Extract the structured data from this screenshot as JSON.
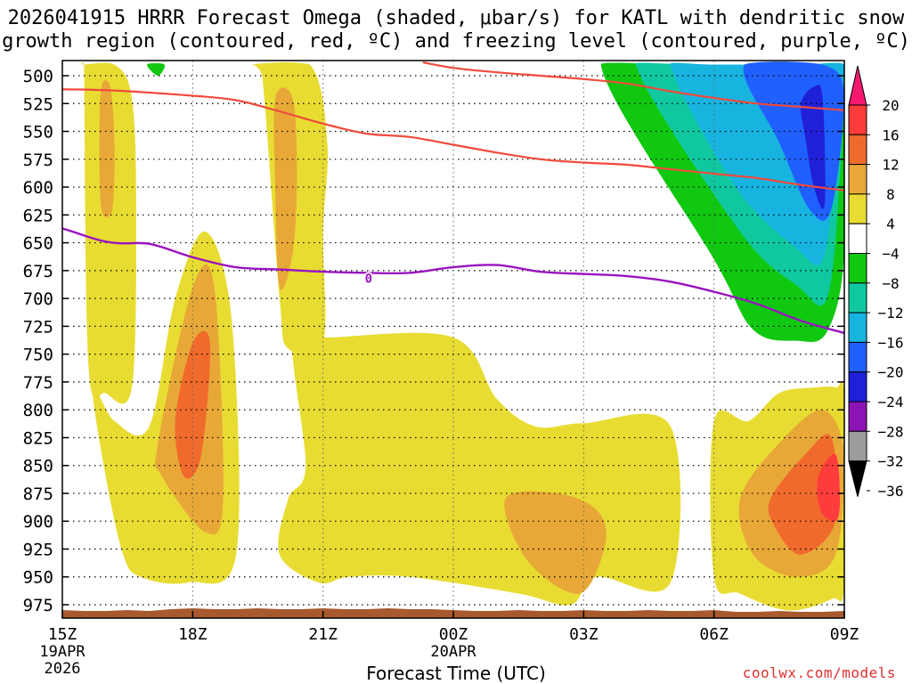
{
  "chart_data": {
    "type": "heatmap",
    "title_line1": "2026041915 HRRR Forecast Omega (shaded, μbar/s) for KATL with dendritic snow",
    "title_line2": "growth region (contoured, red, ºC) and freezing level (contoured, purple, ºC)",
    "xlabel": "Forecast Time (UTC)",
    "x_ticks": [
      {
        "label": "15Z",
        "sub1": "19APR",
        "sub2": "2026",
        "hours": 0
      },
      {
        "label": "18Z",
        "sub1": "",
        "sub2": "",
        "hours": 3
      },
      {
        "label": "21Z",
        "sub1": "",
        "sub2": "",
        "hours": 6
      },
      {
        "label": "00Z",
        "sub1": "20APR",
        "sub2": "",
        "hours": 9
      },
      {
        "label": "03Z",
        "sub1": "",
        "sub2": "",
        "hours": 12
      },
      {
        "label": "06Z",
        "sub1": "",
        "sub2": "",
        "hours": 15
      },
      {
        "label": "09Z",
        "sub1": "",
        "sub2": "",
        "hours": 18
      }
    ],
    "x_range_hours": [
      0,
      18
    ],
    "y_ticks": [
      500,
      525,
      550,
      575,
      600,
      625,
      650,
      675,
      700,
      725,
      750,
      775,
      800,
      825,
      850,
      875,
      900,
      925,
      950,
      975
    ],
    "y_range_hPa": [
      488,
      990
    ],
    "colorbar_ticks": [
      "20",
      "16",
      "12",
      "8",
      "4",
      "−4",
      "−8",
      "−12",
      "−16",
      "−20",
      "−24",
      "−28",
      "−32",
      "−36"
    ],
    "colorbar_colors": [
      "#f5186e",
      "#ff3c3c",
      "#f06a2c",
      "#e8a838",
      "#e8dc32",
      "#ffffff",
      "#10c810",
      "#10c8a0",
      "#18b4e0",
      "#2060ff",
      "#2020d8",
      "#8c14b4",
      "#9c9c9c",
      "#000000"
    ],
    "freezing_level_label": "0",
    "freezing_level": {
      "hours": [
        -1,
        1,
        2,
        3,
        4,
        5,
        6,
        7,
        8,
        9,
        10,
        11,
        12,
        13,
        14,
        15,
        16,
        17,
        18
      ],
      "hPa": [
        630,
        649,
        651,
        663,
        672,
        674,
        676,
        677,
        677,
        672,
        670,
        676,
        678,
        680,
        685,
        694,
        705,
        720,
        731
      ]
    },
    "dendritic_contours": [
      {
        "hours": [
          -1,
          1,
          3,
          4,
          5,
          6,
          7,
          8,
          9,
          10,
          11,
          12,
          13,
          14,
          15,
          16,
          17,
          18
        ],
        "hPa": [
          512,
          513,
          518,
          522,
          532,
          543,
          552,
          555,
          562,
          569,
          575,
          578,
          580,
          584,
          588,
          592,
          598,
          603
        ]
      },
      {
        "hours": [
          8.3,
          9,
          10,
          11,
          12,
          13,
          14,
          15,
          16,
          17,
          18
        ],
        "hPa": [
          488,
          493,
          497,
          500,
          503,
          507,
          514,
          520,
          525,
          528,
          531
        ]
      }
    ],
    "omega_regions": [
      {
        "name": "column-16z",
        "value": 4,
        "color": "#e8dc32",
        "hours": [
          0.5,
          1.2,
          1.6,
          1.7,
          1.6,
          1.0,
          0.6,
          0.5
        ],
        "hPa": [
          490,
          490,
          520,
          620,
          780,
          785,
          760,
          490
        ]
      },
      {
        "name": "column-16z-core",
        "value": 8,
        "color": "#e8a838",
        "hours": [
          0.9,
          1.1,
          1.2,
          1.15,
          0.9,
          0.85
        ],
        "hPa": [
          510,
          510,
          560,
          620,
          620,
          560
        ]
      },
      {
        "name": "low-left",
        "value": 4,
        "color": "#e8dc32",
        "hours": [
          0.7,
          1.2,
          2.0,
          2.6,
          3.3,
          3.9,
          4.0,
          2.9,
          1.8,
          1.4,
          1.0
        ],
        "hPa": [
          780,
          810,
          815,
          700,
          640,
          720,
          930,
          955,
          950,
          930,
          860
        ]
      },
      {
        "name": "plume-18z-8",
        "value": 8,
        "color": "#e8a838",
        "hours": [
          2.2,
          3.0,
          3.5,
          3.7,
          3.3,
          2.3
        ],
        "hPa": [
          830,
          690,
          690,
          880,
          910,
          860
        ]
      },
      {
        "name": "plume-18z-12",
        "value": 12,
        "color": "#f06a2c",
        "hours": [
          2.6,
          3.0,
          3.4,
          3.2,
          2.8
        ],
        "hPa": [
          810,
          740,
          740,
          840,
          860
        ]
      },
      {
        "name": "column-20z",
        "value": 4,
        "color": "#e8dc32",
        "hours": [
          4.4,
          5.7,
          6.1,
          6.0,
          6.0,
          5.2,
          5.0,
          4.6
        ],
        "hPa": [
          490,
          490,
          560,
          640,
          740,
          745,
          700,
          500
        ]
      },
      {
        "name": "column-20z-core",
        "value": 8,
        "color": "#e8a838",
        "hours": [
          4.9,
          5.3,
          5.4,
          5.3,
          5.0,
          4.9
        ],
        "hPa": [
          520,
          520,
          590,
          660,
          690,
          600
        ]
      },
      {
        "name": "big-low",
        "value": 4,
        "color": "#e8dc32",
        "hours": [
          5.3,
          6.1,
          9.0,
          10.0,
          10.9,
          12.0,
          14.0,
          14.0,
          12.3,
          11.7,
          10.5,
          8.0,
          6.6,
          5.9,
          5.0,
          5.2,
          5.6
        ],
        "hPa": [
          735,
          735,
          735,
          790,
          815,
          812,
          815,
          955,
          950,
          975,
          965,
          950,
          950,
          955,
          930,
          880,
          850
        ]
      },
      {
        "name": "big-low-8",
        "value": 8,
        "color": "#e8a838",
        "hours": [
          10.2,
          11.4,
          12.3,
          12.5,
          11.9,
          10.7
        ],
        "hPa": [
          880,
          875,
          890,
          920,
          965,
          935
        ]
      },
      {
        "name": "right-low",
        "value": 4,
        "color": "#e8dc32",
        "hours": [
          15.0,
          15.8,
          16.5,
          17.3,
          17.8,
          18.0,
          18.0,
          17.7,
          16.7,
          15.6,
          15.0
        ],
        "hPa": [
          810,
          810,
          785,
          780,
          780,
          790,
          955,
          970,
          980,
          965,
          950
        ]
      },
      {
        "name": "right-low-8",
        "value": 8,
        "color": "#e8a838",
        "hours": [
          15.6,
          16.5,
          17.5,
          18.0,
          17.8,
          16.9,
          15.9
        ],
        "hPa": [
          880,
          830,
          800,
          840,
          930,
          950,
          930
        ]
      },
      {
        "name": "right-low-12",
        "value": 12,
        "color": "#f06a2c",
        "hours": [
          16.3,
          17.1,
          17.7,
          17.8,
          17.0,
          16.4
        ],
        "hPa": [
          880,
          840,
          825,
          900,
          930,
          905
        ]
      },
      {
        "name": "right-low-16",
        "value": 16,
        "color": "#ff3c3c",
        "hours": [
          17.4,
          17.8,
          17.9,
          17.8,
          17.45
        ],
        "hPa": [
          860,
          840,
          880,
          900,
          890
        ]
      },
      {
        "name": "green-small",
        "value": -4,
        "color": "#10c810",
        "hours": [
          1.95,
          2.35,
          2.2
        ],
        "hPa": [
          490,
          490,
          500
        ]
      },
      {
        "name": "neg-green",
        "value": -4,
        "color": "#10c810",
        "hours": [
          12.4,
          14.5,
          17.0,
          18.0,
          18.0,
          17.6,
          16.9,
          15.9,
          15.0
        ],
        "hPa": [
          490,
          490,
          490,
          490,
          660,
          730,
          738,
          728,
          665
        ]
      },
      {
        "name": "neg-teal",
        "value": -8,
        "color": "#10c8a0",
        "hours": [
          13.2,
          14.6,
          17.0,
          18.0,
          17.9,
          17.6,
          16.9,
          15.6
        ],
        "hPa": [
          490,
          490,
          490,
          490,
          590,
          700,
          688,
          640
        ]
      },
      {
        "name": "neg-cyan",
        "value": -12,
        "color": "#18b4e0",
        "hours": [
          14.0,
          15.0,
          17.0,
          18.0,
          17.8,
          17.5,
          16.9,
          15.5
        ],
        "hPa": [
          490,
          490,
          490,
          490,
          580,
          665,
          655,
          600
        ]
      },
      {
        "name": "neg-blue",
        "value": -16,
        "color": "#2060ff",
        "hours": [
          15.7,
          17.5,
          18.0,
          17.7,
          17.2,
          16.5
        ],
        "hPa": [
          490,
          490,
          520,
          620,
          620,
          560
        ]
      },
      {
        "name": "neg-core",
        "value": -20,
        "color": "#2020d8",
        "hours": [
          17.0,
          17.3,
          17.5,
          17.55,
          17.3,
          17.1
        ],
        "hPa": [
          525,
          510,
          520,
          615,
          600,
          555
        ]
      }
    ],
    "terrain_color": "#a85a2e"
  },
  "credit": "coolwx.com/models"
}
